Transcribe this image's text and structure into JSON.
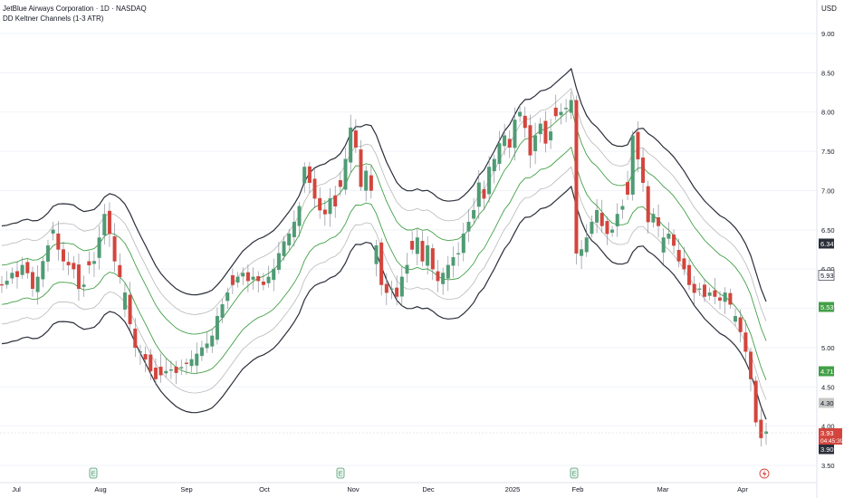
{
  "header": {
    "symbol_line": "JetBlue Airways Corporation · 1D · NASDAQ",
    "indicator_line": "DD Keltner Channels (1-3 ATR)"
  },
  "price_axis": {
    "currency": "USD",
    "ticks": [
      "9.00",
      "8.50",
      "8.00",
      "7.50",
      "7.00",
      "6.50",
      "6.00",
      "5.50",
      "5.00",
      "4.50",
      "4.00",
      "3.50"
    ]
  },
  "price_labels": {
    "upper_3atr": "6.34",
    "upper_1atr": "5.93",
    "center": "5.53",
    "lower_1atr": "4.71",
    "lower_2atr": "4.30",
    "last_price": "3.93",
    "countdown": "04:45:39",
    "lower_3atr": "3.90"
  },
  "time_axis": {
    "labels": [
      "Jul",
      "Aug",
      "Sep",
      "Oct",
      "Nov",
      "Dec",
      "2025",
      "Feb",
      "Mar",
      "Apr"
    ]
  },
  "event_markers": [
    "E",
    "E",
    "E"
  ],
  "colors": {
    "up": "#4f9b74",
    "down": "#d3453d",
    "upper_outer": "#2a2e39",
    "inner_band": "#b8b8b8",
    "center_line": "#43a047",
    "last_price_bg": "#d3453d",
    "axis_text": "#131722",
    "grid": "#f0f3fa"
  },
  "chart_data": {
    "type": "candlestick",
    "title": "JetBlue Airways Corporation · 1D · NASDAQ",
    "indicator": "DD Keltner Channels (1-3 ATR)",
    "ylim": [
      3.4,
      9.3
    ],
    "y_ticks": [
      3.5,
      4.0,
      4.5,
      5.0,
      5.5,
      6.0,
      6.5,
      7.0,
      7.5,
      8.0,
      8.5,
      9.0
    ],
    "x_month_labels": [
      "Jul",
      "Aug",
      "Sep",
      "Oct",
      "Nov",
      "Dec",
      "2025",
      "Feb",
      "Mar",
      "Apr"
    ],
    "closes": [
      5.8,
      5.85,
      5.95,
      5.9,
      6.05,
      5.95,
      5.75,
      5.9,
      6.1,
      6.3,
      6.5,
      6.25,
      6.1,
      6.05,
      6.0,
      5.75,
      5.8,
      6.05,
      6.1,
      6.4,
      6.7,
      6.45,
      6.1,
      5.9,
      5.7,
      5.3,
      5.0,
      4.95,
      4.85,
      4.7,
      4.6,
      4.65,
      4.7,
      4.72,
      4.68,
      4.75,
      4.8,
      4.85,
      4.92,
      5.0,
      5.05,
      5.15,
      5.4,
      5.55,
      5.7,
      5.8,
      5.9,
      5.95,
      5.85,
      5.9,
      5.85,
      5.8,
      5.9,
      6.0,
      6.2,
      6.35,
      6.45,
      6.6,
      6.8,
      7.3,
      7.1,
      6.9,
      6.75,
      6.7,
      6.9,
      6.8,
      7.05,
      7.4,
      7.8,
      7.55,
      7.05,
      7.25,
      7.0,
      6.3,
      5.8,
      5.7,
      5.75,
      5.65,
      5.9,
      6.05,
      6.25,
      6.4,
      6.1,
      6.3,
      6.0,
      5.85,
      5.95,
      6.05,
      6.15,
      6.2,
      6.45,
      6.6,
      6.75,
      7.1,
      6.9,
      7.3,
      7.4,
      7.6,
      7.7,
      7.55,
      7.9,
      8.0,
      7.8,
      7.45,
      7.7,
      7.85,
      7.6,
      7.75,
      7.95,
      8.0,
      8.05,
      8.15,
      6.2,
      6.25,
      6.4,
      6.6,
      6.75,
      6.55,
      6.45,
      6.5,
      6.7,
      6.8,
      6.95,
      7.7,
      7.4,
      7.1,
      6.6,
      6.7,
      6.55,
      6.4,
      6.45,
      6.3,
      6.1,
      6.0,
      5.8,
      5.7,
      5.75,
      5.65,
      5.7,
      5.65,
      5.6,
      5.7,
      5.55,
      5.4,
      5.2,
      4.95,
      4.6,
      4.05,
      3.85,
      3.93
    ],
    "last_price": 3.93
  }
}
